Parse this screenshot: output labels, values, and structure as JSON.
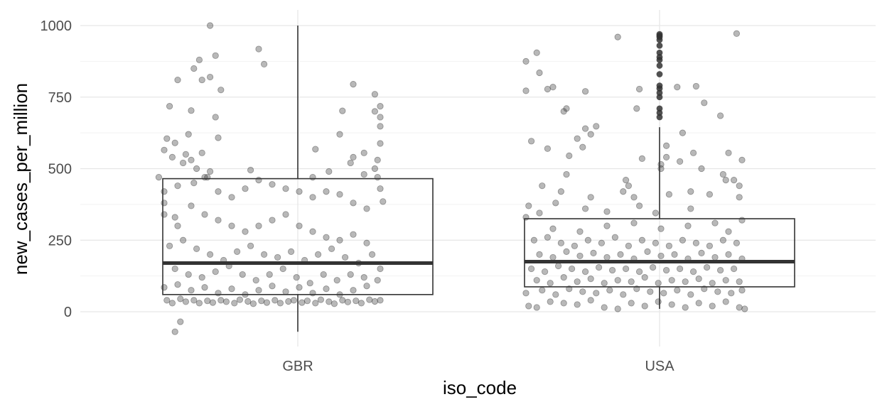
{
  "chart_data": {
    "type": "boxplot",
    "xlabel": "iso_code",
    "ylabel": "new_cases_per_million",
    "categories": [
      "GBR",
      "USA"
    ],
    "y_ticks": [
      0,
      250,
      500,
      750,
      1000
    ],
    "ylim": [
      -80,
      1050
    ],
    "grid": true,
    "point_color": "#333333",
    "boxes": [
      {
        "category": "GBR",
        "min": -70,
        "q1": 60,
        "median": 170,
        "q3": 465,
        "max": 1000,
        "outliers": []
      },
      {
        "category": "USA",
        "min": 10,
        "q1": 87,
        "median": 175,
        "q3": 325,
        "max": 645,
        "outliers": [
          680,
          695,
          710,
          750,
          765,
          780,
          790,
          830,
          860,
          880,
          890,
          905,
          930,
          950,
          960,
          965,
          970
        ]
      }
    ],
    "points": {
      "GBR": [
        [
          0.17,
          1000
        ],
        [
          0.35,
          918
        ],
        [
          0.37,
          865
        ],
        [
          0.19,
          895
        ],
        [
          0.13,
          880
        ],
        [
          0.11,
          850
        ],
        [
          0.17,
          820
        ],
        [
          0.14,
          810
        ],
        [
          0.05,
          810
        ],
        [
          0.21,
          775
        ],
        [
          0.7,
          795
        ],
        [
          0.78,
          760
        ],
        [
          0.8,
          718
        ],
        [
          0.02,
          718
        ],
        [
          0.1,
          703
        ],
        [
          0.78,
          700
        ],
        [
          0.66,
          702
        ],
        [
          0.8,
          680
        ],
        [
          0.19,
          680
        ],
        [
          0.8,
          648
        ],
        [
          0.09,
          620
        ],
        [
          0.65,
          620
        ],
        [
          0.2,
          608
        ],
        [
          0.8,
          588
        ],
        [
          0.0,
          565
        ],
        [
          0.01,
          605
        ],
        [
          0.04,
          590
        ],
        [
          0.03,
          540
        ],
        [
          0.08,
          550
        ],
        [
          0.07,
          520
        ],
        [
          0.1,
          530
        ],
        [
          0.14,
          555
        ],
        [
          0.12,
          500
        ],
        [
          0.32,
          495
        ],
        [
          0.16,
          470
        ],
        [
          0.17,
          490
        ],
        [
          -0.02,
          470
        ],
        [
          0.56,
          568
        ],
        [
          0.7,
          540
        ],
        [
          0.74,
          555
        ],
        [
          0.79,
          530
        ],
        [
          0.78,
          500
        ],
        [
          0.79,
          470
        ],
        [
          0.8,
          430
        ],
        [
          0.81,
          385
        ],
        [
          0.69,
          520
        ],
        [
          0.74,
          480
        ],
        [
          0.61,
          490
        ],
        [
          0.55,
          470
        ],
        [
          0.0,
          420
        ],
        [
          0.0,
          380
        ],
        [
          0.0,
          340
        ],
        [
          0.05,
          440
        ],
        [
          0.04,
          330
        ],
        [
          0.05,
          300
        ],
        [
          0.11,
          450
        ],
        [
          0.15,
          470
        ],
        [
          0.2,
          420
        ],
        [
          0.25,
          400
        ],
        [
          0.3,
          430
        ],
        [
          0.35,
          460
        ],
        [
          0.4,
          445
        ],
        [
          0.45,
          430
        ],
        [
          0.5,
          420
        ],
        [
          0.55,
          400
        ],
        [
          0.6,
          420
        ],
        [
          0.65,
          410
        ],
        [
          0.7,
          380
        ],
        [
          0.75,
          360
        ],
        [
          0.1,
          370
        ],
        [
          0.15,
          340
        ],
        [
          0.2,
          320
        ],
        [
          0.25,
          300
        ],
        [
          0.3,
          280
        ],
        [
          0.35,
          300
        ],
        [
          0.4,
          320
        ],
        [
          0.45,
          340
        ],
        [
          0.5,
          300
        ],
        [
          0.55,
          280
        ],
        [
          0.6,
          260
        ],
        [
          0.65,
          250
        ],
        [
          0.7,
          270
        ],
        [
          0.75,
          240
        ],
        [
          0.02,
          230
        ],
        [
          0.07,
          250
        ],
        [
          0.12,
          220
        ],
        [
          0.17,
          200
        ],
        [
          0.22,
          180
        ],
        [
          0.27,
          210
        ],
        [
          0.32,
          230
        ],
        [
          0.37,
          200
        ],
        [
          0.42,
          190
        ],
        [
          0.47,
          210
        ],
        [
          0.52,
          180
        ],
        [
          0.57,
          200
        ],
        [
          0.62,
          220
        ],
        [
          0.67,
          190
        ],
        [
          0.72,
          170
        ],
        [
          0.77,
          200
        ],
        [
          0.8,
          150
        ],
        [
          0.04,
          150
        ],
        [
          0.09,
          130
        ],
        [
          0.14,
          120
        ],
        [
          0.19,
          140
        ],
        [
          0.24,
          160
        ],
        [
          0.29,
          130
        ],
        [
          0.34,
          110
        ],
        [
          0.39,
          130
        ],
        [
          0.44,
          150
        ],
        [
          0.49,
          120
        ],
        [
          0.54,
          100
        ],
        [
          0.59,
          130
        ],
        [
          0.64,
          110
        ],
        [
          0.69,
          130
        ],
        [
          0.74,
          120
        ],
        [
          0.79,
          110
        ],
        [
          0.0,
          85
        ],
        [
          0.05,
          95
        ],
        [
          0.1,
          75
        ],
        [
          0.15,
          85
        ],
        [
          0.2,
          65
        ],
        [
          0.25,
          80
        ],
        [
          0.3,
          60
        ],
        [
          0.35,
          75
        ],
        [
          0.4,
          90
        ],
        [
          0.45,
          70
        ],
        [
          0.5,
          85
        ],
        [
          0.55,
          65
        ],
        [
          0.6,
          80
        ],
        [
          0.65,
          60
        ],
        [
          0.7,
          75
        ],
        [
          0.75,
          90
        ],
        [
          0.01,
          40
        ],
        [
          0.03,
          30
        ],
        [
          0.06,
          45
        ],
        [
          0.08,
          35
        ],
        [
          0.11,
          40
        ],
        [
          0.13,
          30
        ],
        [
          0.16,
          38
        ],
        [
          0.18,
          32
        ],
        [
          0.21,
          40
        ],
        [
          0.23,
          35
        ],
        [
          0.26,
          30
        ],
        [
          0.28,
          42
        ],
        [
          0.31,
          36
        ],
        [
          0.33,
          28
        ],
        [
          0.36,
          38
        ],
        [
          0.38,
          32
        ],
        [
          0.41,
          40
        ],
        [
          0.43,
          30
        ],
        [
          0.46,
          36
        ],
        [
          0.48,
          40
        ],
        [
          0.51,
          32
        ],
        [
          0.53,
          38
        ],
        [
          0.56,
          30
        ],
        [
          0.58,
          42
        ],
        [
          0.61,
          35
        ],
        [
          0.63,
          28
        ],
        [
          0.66,
          40
        ],
        [
          0.68,
          34
        ],
        [
          0.71,
          38
        ],
        [
          0.73,
          30
        ],
        [
          0.76,
          42
        ],
        [
          0.78,
          36
        ],
        [
          0.8,
          40
        ],
        [
          0.04,
          -70
        ],
        [
          0.06,
          -35
        ]
      ],
      "USA": [
        [
          0.04,
          905
        ],
        [
          0.0,
          875
        ],
        [
          0.05,
          835
        ],
        [
          0.08,
          778
        ],
        [
          0.1,
          785
        ],
        [
          0.0,
          772
        ],
        [
          0.34,
          960
        ],
        [
          0.78,
          972
        ],
        [
          0.63,
          788
        ],
        [
          0.42,
          778
        ],
        [
          0.22,
          770
        ],
        [
          0.56,
          785
        ],
        [
          0.15,
          710
        ],
        [
          0.14,
          700
        ],
        [
          0.41,
          710
        ],
        [
          0.66,
          730
        ],
        [
          0.19,
          605
        ],
        [
          0.72,
          685
        ],
        [
          0.22,
          640
        ],
        [
          0.26,
          648
        ],
        [
          0.24,
          620
        ],
        [
          0.21,
          575
        ],
        [
          0.02,
          596
        ],
        [
          0.16,
          545
        ],
        [
          0.43,
          535
        ],
        [
          0.08,
          570
        ],
        [
          0.06,
          440
        ],
        [
          0.15,
          480
        ],
        [
          0.24,
          400
        ],
        [
          0.22,
          360
        ],
        [
          0.5,
          515
        ],
        [
          0.62,
          555
        ],
        [
          0.5,
          500
        ],
        [
          0.52,
          540
        ],
        [
          0.57,
          525
        ],
        [
          0.52,
          580
        ],
        [
          0.58,
          625
        ],
        [
          0.65,
          500
        ],
        [
          0.73,
          480
        ],
        [
          0.74,
          460
        ],
        [
          0.77,
          460
        ],
        [
          0.79,
          440
        ],
        [
          0.79,
          400
        ],
        [
          0.8,
          530
        ],
        [
          0.75,
          555
        ],
        [
          0.68,
          410
        ],
        [
          0.61,
          420
        ],
        [
          0.61,
          360
        ],
        [
          0.53,
          410
        ],
        [
          0.36,
          420
        ],
        [
          0.37,
          460
        ],
        [
          0.3,
          350
        ],
        [
          0.38,
          440
        ],
        [
          0.4,
          400
        ],
        [
          0.13,
          420
        ],
        [
          0.11,
          380
        ],
        [
          0.05,
          345
        ],
        [
          0.0,
          330
        ],
        [
          0.01,
          370
        ],
        [
          0.42,
          370
        ],
        [
          0.48,
          345
        ],
        [
          0.1,
          290
        ],
        [
          0.2,
          280
        ],
        [
          0.3,
          300
        ],
        [
          0.4,
          310
        ],
        [
          0.5,
          290
        ],
        [
          0.6,
          300
        ],
        [
          0.7,
          310
        ],
        [
          0.75,
          280
        ],
        [
          0.8,
          320
        ],
        [
          0.03,
          250
        ],
        [
          0.08,
          260
        ],
        [
          0.13,
          240
        ],
        [
          0.18,
          230
        ],
        [
          0.23,
          250
        ],
        [
          0.28,
          240
        ],
        [
          0.33,
          260
        ],
        [
          0.38,
          230
        ],
        [
          0.43,
          250
        ],
        [
          0.48,
          240
        ],
        [
          0.53,
          230
        ],
        [
          0.58,
          250
        ],
        [
          0.63,
          240
        ],
        [
          0.68,
          230
        ],
        [
          0.73,
          250
        ],
        [
          0.78,
          240
        ],
        [
          0.05,
          200
        ],
        [
          0.1,
          190
        ],
        [
          0.15,
          210
        ],
        [
          0.2,
          195
        ],
        [
          0.25,
          205
        ],
        [
          0.3,
          190
        ],
        [
          0.35,
          200
        ],
        [
          0.4,
          185
        ],
        [
          0.45,
          210
        ],
        [
          0.5,
          195
        ],
        [
          0.55,
          200
        ],
        [
          0.6,
          185
        ],
        [
          0.65,
          205
        ],
        [
          0.7,
          190
        ],
        [
          0.75,
          200
        ],
        [
          0.8,
          185
        ],
        [
          0.02,
          150
        ],
        [
          0.07,
          140
        ],
        [
          0.12,
          160
        ],
        [
          0.17,
          150
        ],
        [
          0.22,
          140
        ],
        [
          0.27,
          155
        ],
        [
          0.32,
          145
        ],
        [
          0.37,
          150
        ],
        [
          0.42,
          140
        ],
        [
          0.47,
          155
        ],
        [
          0.52,
          145
        ],
        [
          0.57,
          150
        ],
        [
          0.62,
          140
        ],
        [
          0.67,
          155
        ],
        [
          0.72,
          145
        ],
        [
          0.77,
          150
        ],
        [
          0.04,
          110
        ],
        [
          0.09,
          100
        ],
        [
          0.14,
          120
        ],
        [
          0.19,
          105
        ],
        [
          0.24,
          115
        ],
        [
          0.29,
          100
        ],
        [
          0.34,
          110
        ],
        [
          0.39,
          105
        ],
        [
          0.44,
          120
        ],
        [
          0.49,
          100
        ],
        [
          0.54,
          110
        ],
        [
          0.59,
          105
        ],
        [
          0.64,
          115
        ],
        [
          0.69,
          100
        ],
        [
          0.74,
          110
        ],
        [
          0.79,
          105
        ],
        [
          0.0,
          65
        ],
        [
          0.06,
          75
        ],
        [
          0.11,
          60
        ],
        [
          0.16,
          80
        ],
        [
          0.21,
          70
        ],
        [
          0.26,
          65
        ],
        [
          0.31,
          75
        ],
        [
          0.36,
          60
        ],
        [
          0.41,
          80
        ],
        [
          0.46,
          70
        ],
        [
          0.51,
          65
        ],
        [
          0.56,
          75
        ],
        [
          0.61,
          60
        ],
        [
          0.66,
          80
        ],
        [
          0.71,
          70
        ],
        [
          0.76,
          65
        ],
        [
          0.8,
          75
        ],
        [
          0.01,
          20
        ],
        [
          0.04,
          15
        ],
        [
          0.09,
          35
        ],
        [
          0.14,
          30
        ],
        [
          0.19,
          25
        ],
        [
          0.24,
          40
        ],
        [
          0.29,
          15
        ],
        [
          0.34,
          10
        ],
        [
          0.39,
          30
        ],
        [
          0.44,
          20
        ],
        [
          0.49,
          35
        ],
        [
          0.54,
          25
        ],
        [
          0.59,
          15
        ],
        [
          0.64,
          30
        ],
        [
          0.69,
          20
        ],
        [
          0.74,
          35
        ],
        [
          0.79,
          15
        ],
        [
          0.81,
          10
        ]
      ]
    }
  }
}
